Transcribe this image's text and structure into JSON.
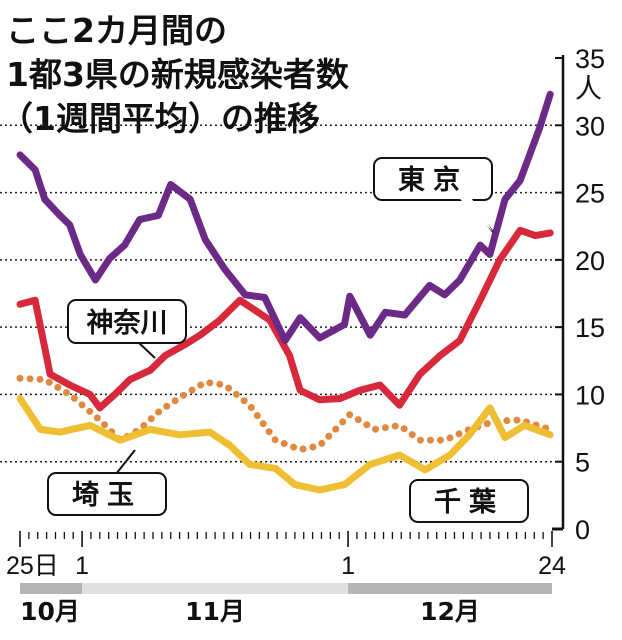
{
  "chart_data": {
    "type": "line",
    "title": [
      "ここ2カ月間の",
      "1都3県の新規感染者数",
      "（1週間平均）の推移"
    ],
    "ylabel": "人",
    "ylim": [
      0,
      35
    ],
    "yticks": [
      "0",
      "5",
      "10",
      "15",
      "20",
      "25",
      "30",
      "35"
    ],
    "x_unit": "days since Oct 25",
    "xlim": [
      0,
      60
    ],
    "xtick_labels": [
      {
        "day": 0,
        "label": "25日"
      },
      {
        "day": 7,
        "label": "1"
      },
      {
        "day": 37,
        "label": "1"
      },
      {
        "day": 60,
        "label": "24"
      }
    ],
    "months": [
      {
        "label": "10月",
        "start": 0,
        "end": 7,
        "color": "#b4b4b4"
      },
      {
        "label": "11月",
        "start": 7,
        "end": 37,
        "color": "#e0e0e0"
      },
      {
        "label": "12月",
        "start": 37,
        "end": 60,
        "color": "#b4b4b4"
      }
    ],
    "grid": true,
    "series": [
      {
        "name": "東京",
        "color": "#6b2a86",
        "style": "solid",
        "x": [
          0,
          1.7,
          2.8,
          4.5,
          5.6,
          6.8,
          8.5,
          10.1,
          11.8,
          13.5,
          15.6,
          17,
          19.2,
          20.9,
          23.1,
          25.4,
          27.6,
          29.9,
          31.6,
          33.8,
          36.6,
          37.2,
          39.5,
          41.2,
          43.4,
          46.2,
          47.9,
          49.6,
          51.9,
          53,
          54.7,
          56.4,
          58.6,
          59.8
        ],
        "y": [
          27.8,
          26.7,
          24.5,
          23.3,
          22.6,
          20.4,
          18.5,
          20.1,
          21.1,
          23,
          23.3,
          25.6,
          24.5,
          21.5,
          19.3,
          17.4,
          17.2,
          14,
          15.7,
          14.2,
          15.2,
          17.3,
          14.4,
          16.1,
          15.9,
          18.1,
          17.4,
          18.5,
          21.1,
          20.4,
          24.5,
          25.9,
          29.8,
          32.3
        ]
      },
      {
        "name": "神奈川",
        "color": "#d8283c",
        "style": "solid",
        "x": [
          0,
          1.7,
          3.4,
          5.6,
          7.9,
          9,
          10.7,
          12.4,
          14.7,
          16.4,
          18.6,
          20.3,
          22.5,
          24.8,
          26.4,
          28.2,
          30.4,
          31.6,
          33.8,
          36.1,
          38.3,
          40.6,
          42.8,
          45.1,
          47.4,
          49.6,
          51.9,
          54.1,
          56.4,
          58.1,
          59.8
        ],
        "y": [
          16.7,
          17,
          11.5,
          10.7,
          10,
          9,
          10,
          11.1,
          11.8,
          12.9,
          13.7,
          14.4,
          15.5,
          17,
          16.3,
          15.5,
          12.9,
          10.3,
          9.6,
          9.7,
          10.3,
          10.7,
          9.2,
          11.5,
          12.9,
          14,
          17,
          20,
          22.2,
          21.8,
          22
        ]
      },
      {
        "name": "千葉",
        "color": "#f0be32",
        "style": "solid",
        "x": [
          0,
          2.3,
          4.5,
          7.9,
          11.3,
          14.7,
          18,
          21.4,
          23.7,
          25.9,
          28.8,
          31,
          33.8,
          36.6,
          39.5,
          42.8,
          45.7,
          48.5,
          50.7,
          53,
          54.7,
          56.9,
          59.8
        ],
        "y": [
          9.7,
          7.4,
          7.2,
          7.7,
          6.6,
          7.4,
          7,
          7.2,
          6.2,
          4.8,
          4.5,
          3.3,
          2.9,
          3.3,
          4.8,
          5.5,
          4.4,
          5.5,
          7,
          9,
          6.8,
          7.7,
          7
        ]
      },
      {
        "name": "埼玉",
        "color": "#e0893e",
        "style": "dotted",
        "x": [
          0,
          2.8,
          5.6,
          9,
          11.3,
          13.5,
          15.8,
          18.6,
          20.9,
          23.1,
          25.9,
          28.8,
          31.6,
          33.8,
          37.2,
          40,
          42.8,
          45.1,
          47.9,
          50.7,
          53.5,
          56.4,
          59.8
        ],
        "y": [
          11.2,
          11.1,
          10,
          8.1,
          6.6,
          7.4,
          8.8,
          10,
          10.9,
          10.7,
          9.2,
          6.6,
          5.9,
          6.2,
          8.5,
          7.4,
          7.7,
          6.6,
          6.6,
          7.4,
          8,
          8.1,
          7.4
        ]
      }
    ]
  }
}
